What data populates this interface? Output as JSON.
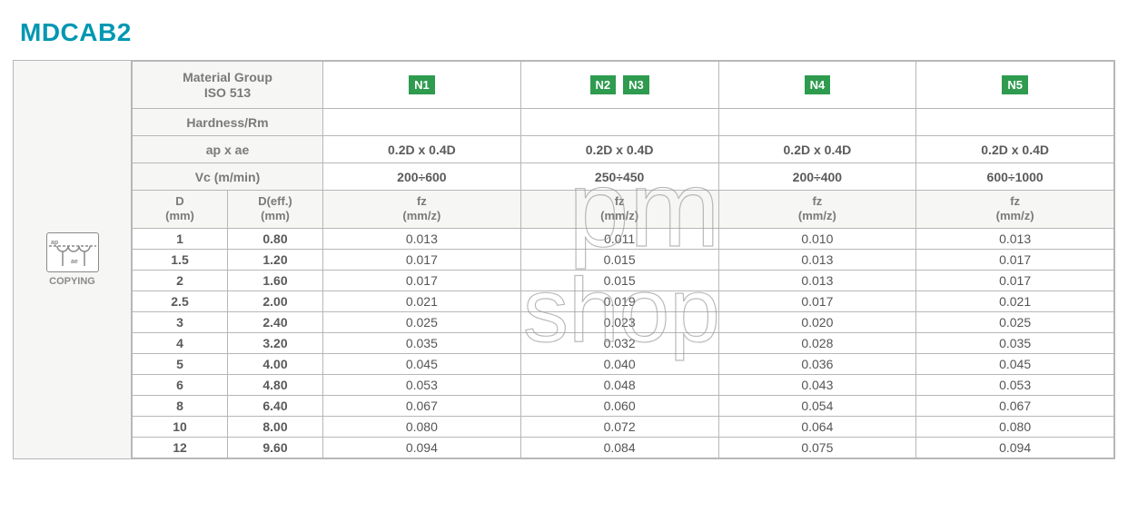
{
  "title": "MDCAB2",
  "icon_label": "COPYING",
  "colors": {
    "accent": "#0097b2",
    "grid": "#b7b7b7",
    "header_bg": "#f6f6f4",
    "header_text": "#7a7a78",
    "body_text": "#5a5a5a",
    "badge_bg": "#2e9b4f",
    "badge_text": "#ffffff",
    "white": "#ffffff",
    "icon_gray": "#8a8a8a"
  },
  "param_labels": {
    "material_group_l1": "Material Group",
    "material_group_l2": "ISO 513",
    "hardness": "Hardness/Rm",
    "ap_ae": "ap x ae",
    "vc": "Vc (m/min)",
    "d_l1": "D",
    "d_l2": "(mm)",
    "deff_l1": "D(eff.)",
    "deff_l2": "(mm)",
    "fz_l1": "fz",
    "fz_l2": "(mm/z)"
  },
  "groups": [
    {
      "badges": [
        "N1"
      ],
      "ap_ae": "0.2D x 0.4D",
      "vc": "200÷600"
    },
    {
      "badges": [
        "N2",
        "N3"
      ],
      "ap_ae": "0.2D x 0.4D",
      "vc": "250÷450"
    },
    {
      "badges": [
        "N4"
      ],
      "ap_ae": "0.2D x 0.4D",
      "vc": "200÷400"
    },
    {
      "badges": [
        "N5"
      ],
      "ap_ae": "0.2D x 0.4D",
      "vc": "600÷1000"
    }
  ],
  "rows": [
    {
      "d": "1",
      "deff": "0.80",
      "fz": [
        "0.013",
        "0.011",
        "0.010",
        "0.013"
      ]
    },
    {
      "d": "1.5",
      "deff": "1.20",
      "fz": [
        "0.017",
        "0.015",
        "0.013",
        "0.017"
      ]
    },
    {
      "d": "2",
      "deff": "1.60",
      "fz": [
        "0.017",
        "0.015",
        "0.013",
        "0.017"
      ]
    },
    {
      "d": "2.5",
      "deff": "2.00",
      "fz": [
        "0.021",
        "0.019",
        "0.017",
        "0.021"
      ]
    },
    {
      "d": "3",
      "deff": "2.40",
      "fz": [
        "0.025",
        "0.023",
        "0.020",
        "0.025"
      ]
    },
    {
      "d": "4",
      "deff": "3.20",
      "fz": [
        "0.035",
        "0.032",
        "0.028",
        "0.035"
      ]
    },
    {
      "d": "5",
      "deff": "4.00",
      "fz": [
        "0.045",
        "0.040",
        "0.036",
        "0.045"
      ]
    },
    {
      "d": "6",
      "deff": "4.80",
      "fz": [
        "0.053",
        "0.048",
        "0.043",
        "0.053"
      ]
    },
    {
      "d": "8",
      "deff": "6.40",
      "fz": [
        "0.067",
        "0.060",
        "0.054",
        "0.067"
      ]
    },
    {
      "d": "10",
      "deff": "8.00",
      "fz": [
        "0.080",
        "0.072",
        "0.064",
        "0.080"
      ]
    },
    {
      "d": "12",
      "deff": "9.60",
      "fz": [
        "0.094",
        "0.084",
        "0.075",
        "0.094"
      ]
    }
  ],
  "watermark": {
    "line1": "pm",
    "line2": "shop"
  }
}
